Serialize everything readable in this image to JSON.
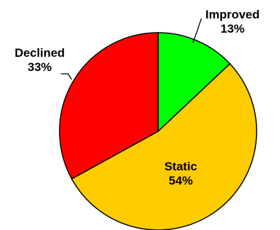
{
  "chart_data": {
    "type": "pie",
    "title": "",
    "slices": [
      {
        "label": "Improved",
        "value": 13,
        "display": "13%",
        "color": "#00ff00"
      },
      {
        "label": "Static",
        "value": 54,
        "display": "54%",
        "color": "#ffcc00"
      },
      {
        "label": "Declined",
        "value": 33,
        "display": "33%",
        "color": "#ff0000"
      }
    ],
    "start_angle": "12 o'clock",
    "direction": "clockwise",
    "legend": "none"
  }
}
